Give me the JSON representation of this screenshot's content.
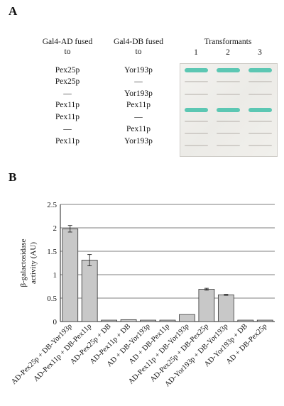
{
  "panelA": {
    "letter": "A",
    "col1_header_line1": "Gal4-AD fused",
    "col1_header_line2": "to",
    "col2_header_line1": "Gal4-DB fused",
    "col2_header_line2": "to",
    "transformants_label": "Transformants",
    "transformant_numbers": [
      "1",
      "2",
      "3"
    ],
    "rows": [
      {
        "ad": "Pex25p",
        "db": "Yor193p",
        "growth": "blue"
      },
      {
        "ad": "Pex25p",
        "db": "—",
        "growth": "none"
      },
      {
        "ad": "—",
        "db": "Yor193p",
        "growth": "none"
      },
      {
        "ad": "Pex11p",
        "db": "Pex11p",
        "growth": "blue"
      },
      {
        "ad": "Pex11p",
        "db": "—",
        "growth": "none"
      },
      {
        "ad": "—",
        "db": "Pex11p",
        "growth": "none"
      },
      {
        "ad": "Pex11p",
        "db": "Yor193p",
        "growth": "none"
      }
    ],
    "plate_colors": {
      "positive": "#5cc7b3",
      "negative": "#c9c6c0",
      "background": "#f0efeb"
    }
  },
  "panelB": {
    "letter": "B",
    "chart_data": {
      "type": "bar",
      "ylabel_line1": "β-galactosidase",
      "ylabel_line2": "activity (AU)",
      "ylim": [
        0,
        2.5
      ],
      "yticks": [
        "0",
        "0.5",
        "1",
        "1.5",
        "2",
        "2.5"
      ],
      "grid": "horizontal",
      "bar_color": "#c8c8c8",
      "categories": [
        "AD-Pex25p + DB-Yor193p",
        "AD-Pex11p + DB-Pex11p",
        "AD-Pex25p + DB",
        "AD-Pex11p + DB",
        "AD + DB-Yor193p",
        "AD + DB-Pex11p",
        "AD-Pex11p + DB-Yor193p",
        "AD-Pex25p + DB-Pex25p",
        "AD-Yor193p + DB-Yor193p",
        "AD-Yor193p + DB",
        "AD + DB-Pex25p"
      ],
      "values": [
        1.98,
        1.31,
        0.03,
        0.04,
        0.03,
        0.03,
        0.15,
        0.69,
        0.57,
        0.03,
        0.03
      ],
      "errors": [
        0.07,
        0.12,
        0.0,
        0.0,
        0.0,
        0.0,
        0.0,
        0.02,
        0.01,
        0.0,
        0.0
      ]
    }
  }
}
